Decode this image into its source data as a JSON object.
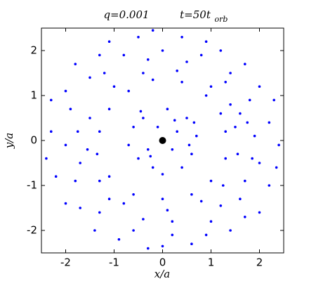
{
  "chart_data": {
    "type": "scatter",
    "title": "q=0.001",
    "title_time": "t=50t",
    "title_time_subscript": "orb",
    "x_label": "x/a",
    "y_label": "y/a",
    "xlim": [
      -2.5,
      2.5
    ],
    "ylim": [
      -2.5,
      2.5
    ],
    "xticks": [
      -2,
      -1,
      0,
      1,
      2
    ],
    "yticks": [
      -2,
      -1,
      0,
      1,
      2
    ],
    "series": [
      {
        "color": "#0000ff",
        "size": 1.8,
        "x": [
          0.3,
          -0.4,
          0.6,
          -0.2,
          0.1,
          -0.7,
          0.5,
          -0.5,
          0.2,
          -0.1,
          0.7,
          -0.3,
          0.4,
          -0.6,
          0.0,
          0.65,
          -0.45,
          0.25,
          -0.25,
          0.55,
          1.3,
          1.2,
          0.9,
          0.4,
          -0.2,
          -0.7,
          -1.1,
          -1.3,
          -1.35,
          -1.1,
          -0.6,
          0.0,
          0.6,
          1.0,
          1.3,
          1.5,
          1.4,
          1.0,
          0.3,
          -0.4,
          -1.0,
          -1.5,
          -1.55,
          -1.3,
          -0.8,
          0.1,
          0.8,
          1.25,
          1.55,
          1.6,
          1.9,
          1.8,
          1.4,
          0.8,
          0.0,
          -0.8,
          -1.5,
          -1.9,
          -2.0,
          -1.8,
          -1.3,
          -0.6,
          0.2,
          1.0,
          1.6,
          2.0,
          2.2,
          2.0,
          1.2,
          0.4,
          -0.5,
          -1.3,
          -2.0,
          -2.3,
          -2.2,
          -1.7,
          -0.9,
          0.0,
          0.9,
          1.7,
          2.2,
          2.4,
          2.3,
          1.7,
          0.9,
          -0.2,
          -1.1,
          -1.8,
          -2.3,
          -2.4,
          -2.0,
          -1.4,
          -0.3,
          0.6,
          1.4,
          2.0,
          2.35,
          1.75,
          1.85,
          -1.75,
          -1.7,
          0.5,
          -0.3,
          0.2,
          -0.4,
          1.3,
          -1.2,
          -1.1,
          1.2,
          1.7
        ],
        "y": [
          0.2,
          0.5,
          -0.3,
          -0.6,
          0.7,
          -0.1,
          0.5,
          -0.4,
          -0.2,
          0.3,
          0.1,
          -0.2,
          -0.6,
          0.3,
          -0.75,
          0.4,
          0.65,
          0.45,
          -0.35,
          -0.1,
          0.2,
          0.6,
          1.0,
          1.3,
          1.35,
          1.1,
          0.7,
          0.2,
          -0.3,
          -0.8,
          -1.2,
          -1.3,
          -1.2,
          -0.9,
          -0.4,
          0.3,
          0.8,
          1.2,
          1.55,
          1.5,
          1.2,
          0.5,
          -0.2,
          -0.9,
          -1.4,
          -1.55,
          -1.35,
          -1.0,
          -0.3,
          0.6,
          0.1,
          0.9,
          1.5,
          1.9,
          2.0,
          1.9,
          1.4,
          0.7,
          -0.1,
          -0.9,
          -1.6,
          -2.0,
          -2.1,
          -1.8,
          -1.3,
          -0.5,
          0.4,
          1.2,
          2.0,
          2.3,
          2.3,
          1.9,
          1.1,
          0.2,
          -0.8,
          -1.5,
          -2.2,
          -2.35,
          -2.1,
          -1.7,
          -1.0,
          -0.1,
          0.9,
          1.7,
          2.2,
          2.45,
          2.2,
          1.7,
          0.9,
          -0.4,
          -1.4,
          -2.0,
          -2.4,
          -2.3,
          -2.0,
          -1.6,
          -0.6,
          0.4,
          -0.4,
          0.2,
          -0.5,
          1.75,
          1.8,
          -1.8,
          -1.75,
          1.3,
          1.5,
          -1.3,
          -1.45,
          -0.9
        ]
      },
      {
        "color": "#000000",
        "size": 5,
        "x": [
          0
        ],
        "y": [
          0
        ]
      }
    ]
  }
}
